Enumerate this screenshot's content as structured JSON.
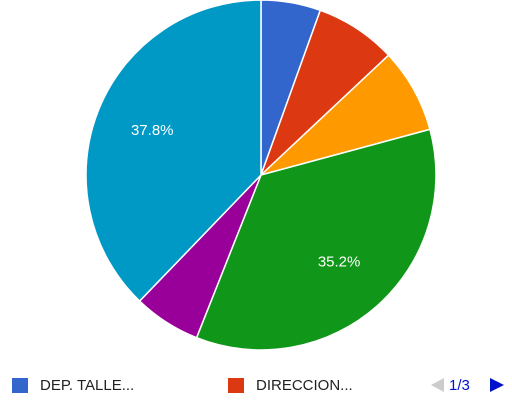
{
  "chart_data": {
    "type": "pie",
    "categories": [
      "DEP. TALLE...",
      "DIRECCION...",
      null,
      null,
      null,
      null
    ],
    "values": [
      5.5,
      7.5,
      7.8,
      35.2,
      6.2,
      37.8
    ],
    "value_labels": [
      null,
      null,
      null,
      "35.2%",
      null,
      "37.8%"
    ],
    "colors": [
      "#3366cc",
      "#dc3912",
      "#ff9900",
      "#109618",
      "#990099",
      "#0099c6"
    ],
    "legend": "bottom",
    "legend_page": "1/3"
  }
}
